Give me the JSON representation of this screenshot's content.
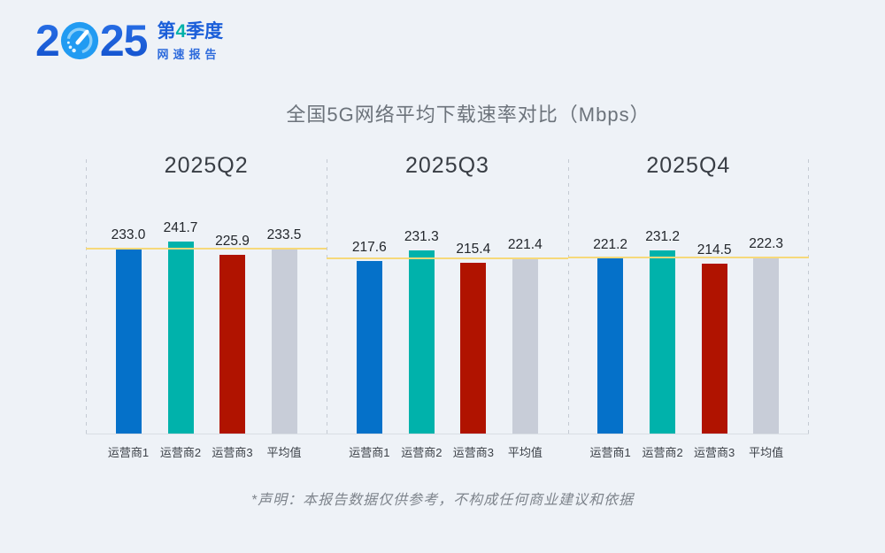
{
  "logo": {
    "year_first_digit": "2",
    "year_rest_digits": "25",
    "speedometer_icon": "speedometer-icon",
    "quarter_prefix": "第",
    "quarter_number": "4",
    "quarter_suffix": "季度",
    "subtitle": "网速报告"
  },
  "title": "全国5G网络平均下载速率对比（Mbps）",
  "disclaimer": "*声明：本报告数据仅供参考，不构成任何商业建议和依据",
  "chart_data": {
    "type": "bar",
    "title": "全国5G网络平均下载速率对比（Mbps）",
    "unit": "Mbps",
    "categories": [
      "运营商1",
      "运营商2",
      "运营商3",
      "平均值"
    ],
    "groups": [
      {
        "label": "2025Q2",
        "values": [
          233.0,
          241.7,
          225.9,
          233.5
        ],
        "average_line": 233.5
      },
      {
        "label": "2025Q3",
        "values": [
          217.6,
          231.3,
          215.4,
          221.4
        ],
        "average_line": 221.4
      },
      {
        "label": "2025Q4",
        "values": [
          221.2,
          231.2,
          214.5,
          222.3
        ],
        "average_line": 222.3
      }
    ],
    "bar_colors": [
      "#0571C9",
      "#00B2AB",
      "#B01300",
      "#C8CDD8"
    ],
    "average_line_color": "#F6D97A",
    "value_label_format": "one_decimal",
    "ylim": [
      0,
      347
    ],
    "grid": false,
    "legend": false,
    "axis_line_color": "#D9DEE4",
    "group_separator_color": "#C4CAD3"
  },
  "colors": {
    "background": "#EEF2F7",
    "logo_blue": "#1C63DE",
    "logo_teal": "#00B2A9",
    "title_gray": "#6C737B"
  }
}
